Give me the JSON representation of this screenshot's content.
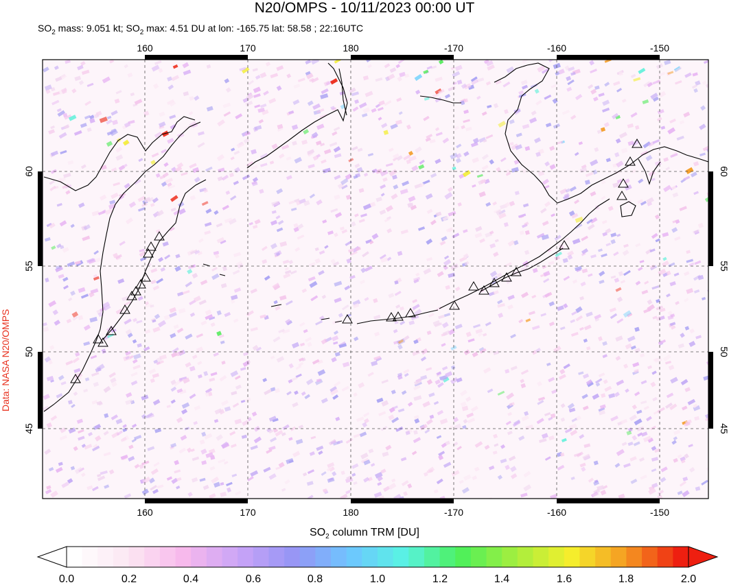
{
  "header": {
    "title": "N20/OMPS - 10/11/2023 00:00 UT",
    "stats": {
      "mass_prefix": "SO",
      "mass_sub": "2",
      "mass_text": " mass: 9.051 kt; SO",
      "max_sub": "2",
      "max_text": " max: 4.51 DU at lon: -165.75 lat: 58.58 ; 22:16UTC"
    }
  },
  "credit": "Data: NASA N20/OMPS",
  "map": {
    "lon_ticks": [
      "160",
      "170",
      "180",
      "-170",
      "-160",
      "-150"
    ],
    "lat_ticks": [
      "60",
      "55",
      "50",
      "45"
    ]
  },
  "colorbar": {
    "label_prefix": "SO",
    "label_sub": "2",
    "label_suffix": " column TRM [DU]",
    "ticks": [
      "0.0",
      "0.2",
      "0.4",
      "0.6",
      "0.8",
      "1.0",
      "1.2",
      "1.4",
      "1.6",
      "1.8",
      "2.0"
    ],
    "colors": [
      "#ffffff",
      "#fce6f2",
      "#f7b8ec",
      "#c9a4f7",
      "#9595f5",
      "#6ec6ff",
      "#58f3e3",
      "#4cf05a",
      "#a5ee3e",
      "#f5ef2c",
      "#f59a22",
      "#ee1f10"
    ]
  }
}
